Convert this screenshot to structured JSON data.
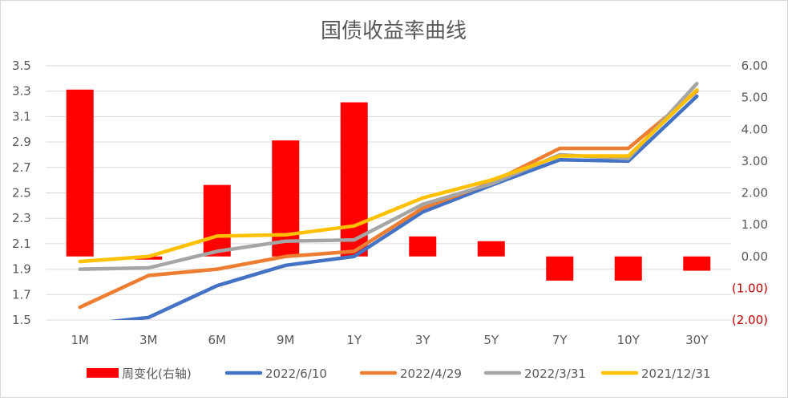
{
  "chart_data": {
    "type": "bar+line",
    "title": "国债收益率曲线",
    "categories": [
      "1M",
      "3M",
      "6M",
      "9M",
      "1Y",
      "3Y",
      "5Y",
      "7Y",
      "10Y",
      "30Y"
    ],
    "y_left": {
      "min": 1.5,
      "max": 3.5,
      "ticks": [
        "1.5",
        "1.7",
        "1.9",
        "2.1",
        "2.3",
        "2.5",
        "2.7",
        "2.9",
        "3.1",
        "3.3",
        "3.5"
      ]
    },
    "y_right": {
      "min": -2,
      "max": 6,
      "ticks": [
        {
          "value": -2,
          "label": "(2.00)",
          "negative": true
        },
        {
          "value": -1,
          "label": "(1.00)",
          "negative": true
        },
        {
          "value": 0,
          "label": "0.00"
        },
        {
          "value": 1,
          "label": "1.00"
        },
        {
          "value": 2,
          "label": "2.00"
        },
        {
          "value": 3,
          "label": "3.00"
        },
        {
          "value": 4,
          "label": "4.00"
        },
        {
          "value": 5,
          "label": "5.00"
        },
        {
          "value": 6,
          "label": "6.00"
        }
      ]
    },
    "bars": {
      "name": "周变化(右轴)",
      "color": "#ff0000",
      "axis": "right",
      "values": [
        5.25,
        -0.1,
        2.25,
        3.65,
        4.85,
        0.63,
        0.48,
        -0.76,
        -0.76,
        -0.45
      ]
    },
    "series": [
      {
        "name": "2022/6/10",
        "color": "#4472c4",
        "values": [
          1.46,
          1.52,
          1.77,
          1.93,
          2.0,
          2.35,
          2.56,
          2.76,
          2.75,
          3.26
        ]
      },
      {
        "name": "2022/4/29",
        "color": "#ed7d31",
        "values": [
          1.6,
          1.85,
          1.9,
          2.0,
          2.04,
          2.38,
          2.58,
          2.85,
          2.85,
          3.3
        ]
      },
      {
        "name": "2022/3/31",
        "color": "#a5a5a5",
        "values": [
          1.9,
          1.91,
          2.04,
          2.12,
          2.13,
          2.41,
          2.57,
          2.8,
          2.77,
          3.36
        ]
      },
      {
        "name": "2021/12/31",
        "color": "#ffc000",
        "values": [
          1.96,
          2.0,
          2.16,
          2.17,
          2.24,
          2.46,
          2.6,
          2.79,
          2.79,
          3.31
        ]
      }
    ],
    "legend": "bottom",
    "grid": true
  }
}
